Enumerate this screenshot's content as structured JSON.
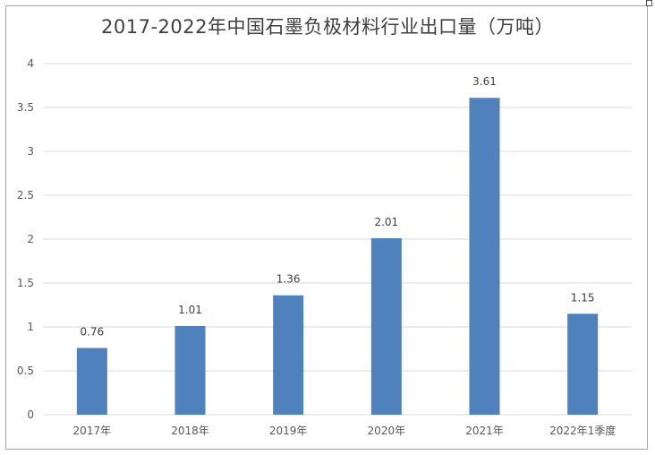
{
  "chart_data": {
    "type": "bar",
    "title": "2017-2022年中国石墨负极材料行业出口量（万吨）",
    "categories": [
      "2017年",
      "2018年",
      "2019年",
      "2020年",
      "2021年",
      "2022年1季度"
    ],
    "values": [
      0.76,
      1.01,
      1.36,
      2.01,
      3.61,
      1.15
    ],
    "value_labels": [
      "0.76",
      "1.01",
      "1.36",
      "2.01",
      "3.61",
      "1.15"
    ],
    "y_ticks": [
      "0",
      "0.5",
      "1",
      "1.5",
      "2",
      "2.5",
      "3",
      "3.5",
      "4"
    ],
    "ylim": [
      0,
      4
    ],
    "grid": true,
    "legend": "none",
    "bar_color": "#4f81bd"
  }
}
